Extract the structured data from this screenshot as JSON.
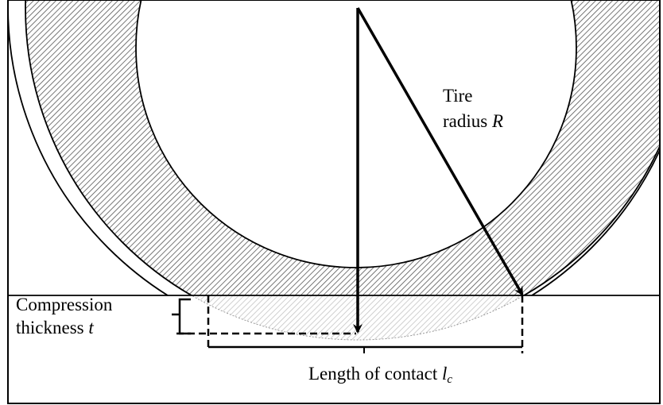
{
  "labels": {
    "tire": "Tire",
    "radius": "radius",
    "radius_symbol": "R",
    "compression": "Compression",
    "thickness": "thickness",
    "thickness_symbol": "t",
    "contact": "Length of contact",
    "contact_symbol": "l",
    "contact_subscript": "c"
  }
}
